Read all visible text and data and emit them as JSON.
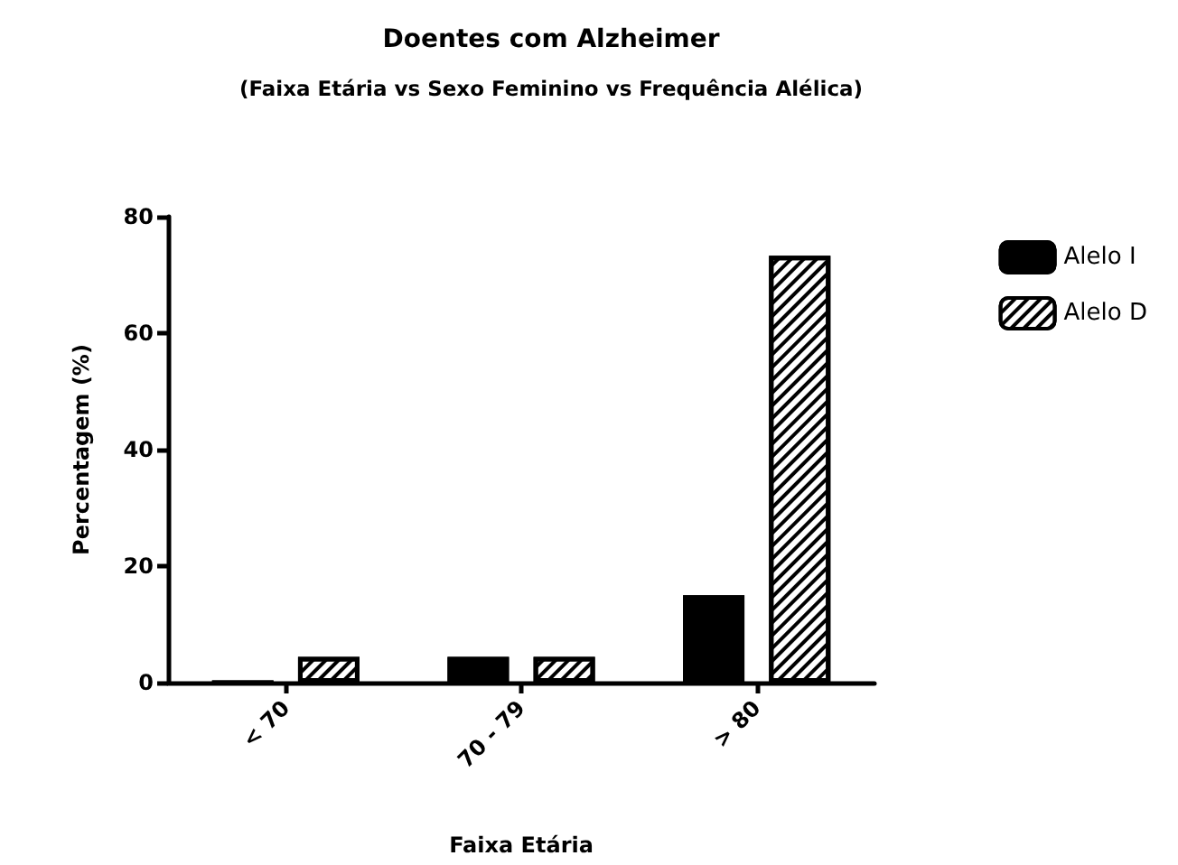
{
  "chart_data": {
    "type": "bar",
    "title": "Doentes com Alzheimer",
    "subtitle": "(Faixa Etária vs Sexo Feminino vs Frequência Alélica)",
    "xlabel": "Faixa Etária",
    "ylabel": "Percentagem (%)",
    "categories": [
      "< 70",
      "70 - 79",
      "> 80"
    ],
    "series": [
      {
        "name": "Alelo I",
        "color": "#000000",
        "values": [
          0,
          4.4,
          15.0
        ]
      },
      {
        "name": "Alelo D",
        "color": "#ffffff",
        "values": [
          4.4,
          4.4,
          73.3
        ]
      }
    ],
    "ylim": [
      0,
      80
    ],
    "yticks": [
      0,
      20,
      40,
      60,
      80
    ],
    "grid": false,
    "legend": "top right"
  }
}
